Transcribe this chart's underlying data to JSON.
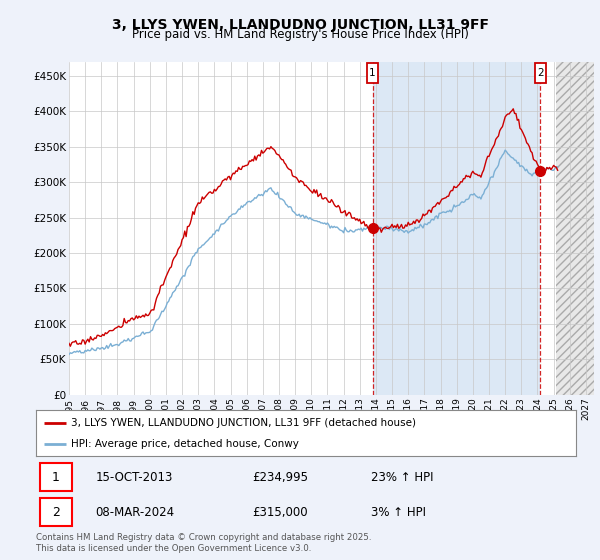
{
  "title": "3, LLYS YWEN, LLANDUDNO JUNCTION, LL31 9FF",
  "subtitle": "Price paid vs. HM Land Registry's House Price Index (HPI)",
  "ylabel_ticks": [
    "£0",
    "£50K",
    "£100K",
    "£150K",
    "£200K",
    "£250K",
    "£300K",
    "£350K",
    "£400K",
    "£450K"
  ],
  "ytick_values": [
    0,
    50000,
    100000,
    150000,
    200000,
    250000,
    300000,
    350000,
    400000,
    450000
  ],
  "ylim": [
    0,
    470000
  ],
  "xlim_start": 1995.0,
  "xlim_end": 2027.5,
  "xtick_years": [
    1995,
    1996,
    1997,
    1998,
    1999,
    2000,
    2001,
    2002,
    2003,
    2004,
    2005,
    2006,
    2007,
    2008,
    2009,
    2010,
    2011,
    2012,
    2013,
    2014,
    2015,
    2016,
    2017,
    2018,
    2019,
    2020,
    2021,
    2022,
    2023,
    2024,
    2025,
    2026,
    2027
  ],
  "legend_entries": [
    "3, LLYS YWEN, LLANDUDNO JUNCTION, LL31 9FF (detached house)",
    "HPI: Average price, detached house, Conwy"
  ],
  "legend_colors": [
    "#cc0000",
    "#7bafd4"
  ],
  "annotation1": {
    "label": "1",
    "date": "15-OCT-2013",
    "price": "£234,995",
    "change": "23% ↑ HPI"
  },
  "annotation2": {
    "label": "2",
    "date": "08-MAR-2024",
    "price": "£315,000",
    "change": "3% ↑ HPI"
  },
  "footnote": "Contains HM Land Registry data © Crown copyright and database right 2025.\nThis data is licensed under the Open Government Licence v3.0.",
  "marker1_x": 2013.79,
  "marker1_y": 234995,
  "marker2_x": 2024.18,
  "marker2_y": 315000,
  "vline1_x": 2013.79,
  "vline2_x": 2024.18,
  "bg_color": "#eef2fa",
  "plot_bg": "#ffffff",
  "highlight_bg": "#dce8f5",
  "grid_color": "#c8c8c8",
  "red_line_color": "#cc0000",
  "blue_line_color": "#7bafd4",
  "hatch_start": 2025.17,
  "title_fontsize": 10,
  "subtitle_fontsize": 8.5
}
